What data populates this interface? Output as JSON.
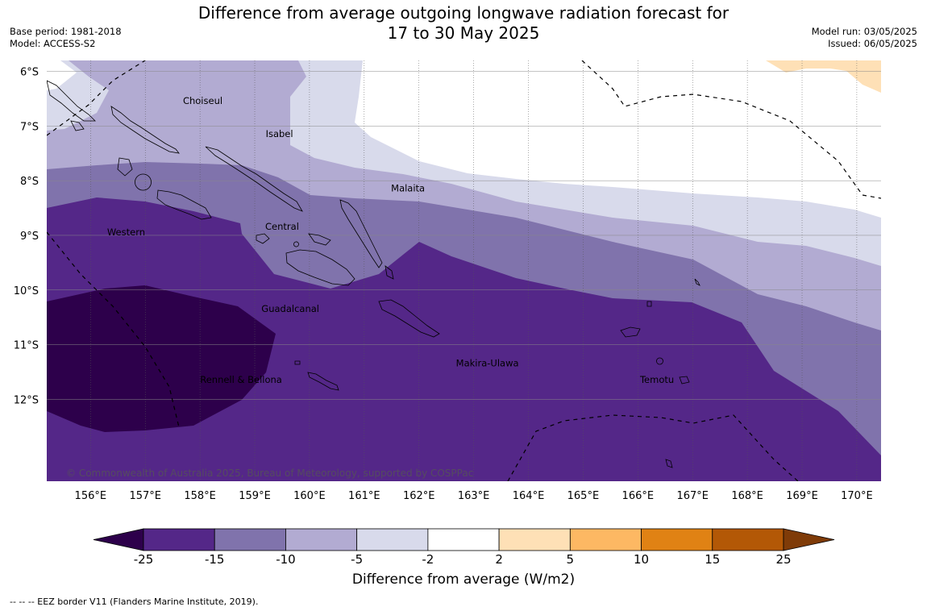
{
  "title_line1": "Difference from average outgoing longwave radiation forecast for",
  "title_line2": "17 to 30 May 2025",
  "base_period": "Base period: 1981-2018",
  "model": "Model: ACCESS-S2",
  "model_run": "Model run: 03/05/2025",
  "issued": "Issued: 06/05/2025",
  "copyright": "© Commonwealth of Australia 2025, Bureau of Meteorology, supported by COSPPac",
  "eez_note": "--  --  -- EEZ border V11 (Flanders Marine Institute, 2019).",
  "lat_labels": [
    "6°S",
    "7°S",
    "8°S",
    "9°S",
    "10°S",
    "11°S",
    "12°S"
  ],
  "lon_labels": [
    "156°E",
    "157°E",
    "158°E",
    "159°E",
    "160°E",
    "161°E",
    "162°E",
    "163°E",
    "164°E",
    "165°E",
    "166°E",
    "167°E",
    "168°E",
    "169°E",
    "170°E"
  ],
  "regions": [
    {
      "name": "Choiseul",
      "lon": 158.05,
      "lat": -6.6
    },
    {
      "name": "Isabel",
      "lon": 159.45,
      "lat": -7.2
    },
    {
      "name": "Malaita",
      "lon": 161.8,
      "lat": -8.2
    },
    {
      "name": "Western",
      "lon": 156.65,
      "lat": -9.0
    },
    {
      "name": "Central",
      "lon": 159.5,
      "lat": -8.9
    },
    {
      "name": "Guadalcanal",
      "lon": 159.65,
      "lat": -10.4
    },
    {
      "name": "Makira-Ulawa",
      "lon": 163.25,
      "lat": -11.4
    },
    {
      "name": "Rennell & Bellona",
      "lon": 158.75,
      "lat": -11.7
    },
    {
      "name": "Temotu",
      "lon": 166.35,
      "lat": -11.7
    }
  ],
  "colorbar": {
    "title": "Difference from average (W/m2)",
    "tick_labels": [
      "-25",
      "-15",
      "-10",
      "-5",
      "-2",
      "2",
      "5",
      "10",
      "15",
      "25"
    ],
    "colors": [
      "#2d004b",
      "#542788",
      "#8073ac",
      "#b2abd2",
      "#d8daeb",
      "#ffffff",
      "#fee0b6",
      "#fdb863",
      "#e08214",
      "#b35806",
      "#7f3b08"
    ]
  }
}
